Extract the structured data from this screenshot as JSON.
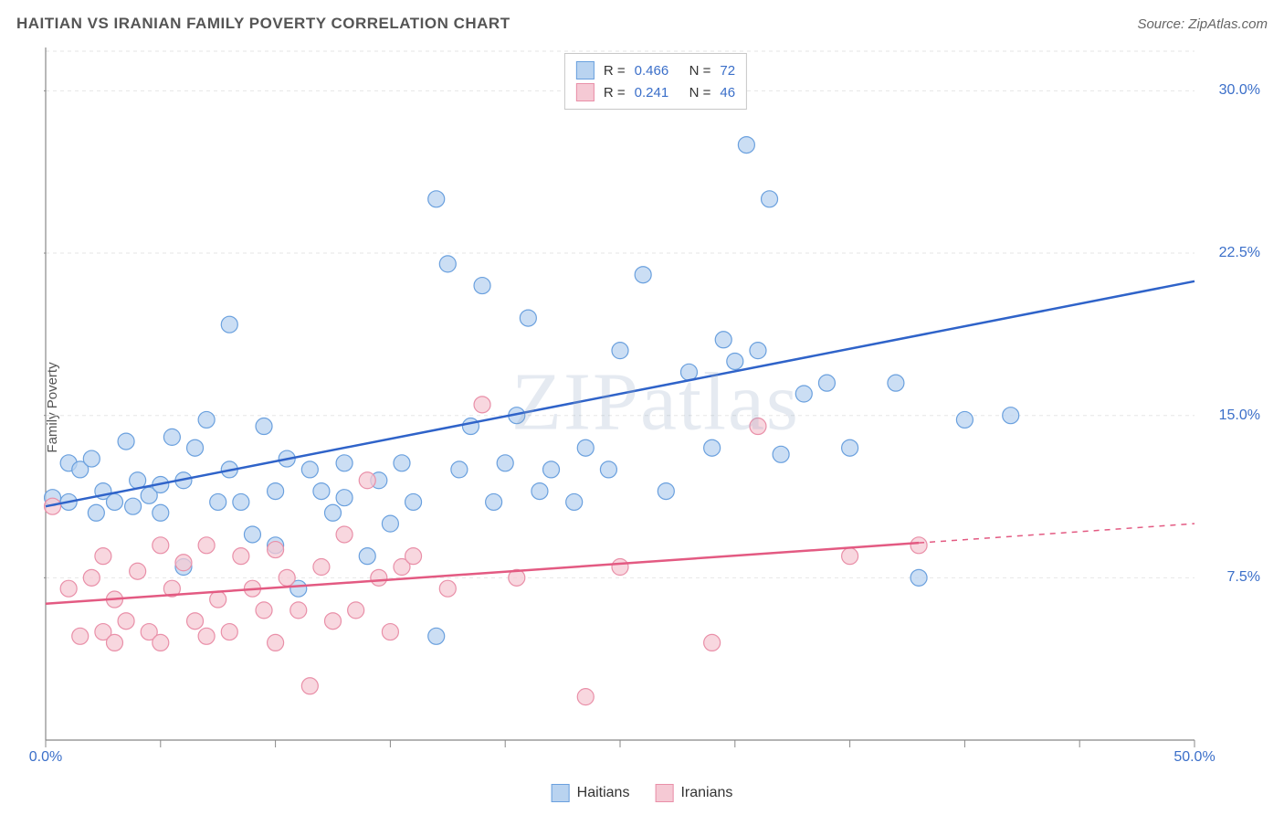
{
  "title": "HAITIAN VS IRANIAN FAMILY POVERTY CORRELATION CHART",
  "source_label": "Source: ZipAtlas.com",
  "ylabel": "Family Poverty",
  "watermark": "ZIPatlas",
  "chart": {
    "type": "scatter-with-regression",
    "background_color": "#ffffff",
    "grid_color": "#e6e6e6",
    "axis_color": "#888888",
    "tick_label_color": "#3b6fc9",
    "xlim": [
      0,
      50
    ],
    "ylim": [
      0,
      32
    ],
    "x_tick_vals": [
      0,
      5,
      10,
      15,
      20,
      25,
      30,
      35,
      40,
      45,
      50
    ],
    "x_tick_labels": {
      "0": "0.0%",
      "50": "50.0%"
    },
    "y_tick_vals": [
      7.5,
      15.0,
      22.5,
      30.0
    ],
    "y_tick_labels": [
      "7.5%",
      "15.0%",
      "22.5%",
      "30.0%"
    ],
    "marker_radius": 9,
    "marker_stroke_width": 1.2,
    "reg_line_width": 2.5,
    "series": [
      {
        "name": "Haitians",
        "fill": "#b9d3f0",
        "stroke": "#6aa0de",
        "line_color": "#2f63c9",
        "r": "0.466",
        "n": "72",
        "reg_start": [
          0,
          10.8
        ],
        "reg_end": [
          50,
          21.2
        ],
        "reg_dash_start_x": null,
        "points": [
          [
            0.3,
            11.2
          ],
          [
            1.0,
            12.8
          ],
          [
            1.0,
            11.0
          ],
          [
            1.5,
            12.5
          ],
          [
            2.0,
            13.0
          ],
          [
            2.2,
            10.5
          ],
          [
            2.5,
            11.5
          ],
          [
            3.0,
            11.0
          ],
          [
            3.5,
            13.8
          ],
          [
            3.8,
            10.8
          ],
          [
            4.0,
            12.0
          ],
          [
            4.5,
            11.3
          ],
          [
            5.0,
            11.8
          ],
          [
            5.0,
            10.5
          ],
          [
            5.5,
            14.0
          ],
          [
            6.0,
            12.0
          ],
          [
            6.0,
            8.0
          ],
          [
            6.5,
            13.5
          ],
          [
            7.0,
            14.8
          ],
          [
            7.5,
            11.0
          ],
          [
            8.0,
            12.5
          ],
          [
            8.0,
            19.2
          ],
          [
            8.5,
            11.0
          ],
          [
            9.0,
            9.5
          ],
          [
            9.5,
            14.5
          ],
          [
            10.0,
            11.5
          ],
          [
            10.0,
            9.0
          ],
          [
            10.5,
            13.0
          ],
          [
            11.0,
            7.0
          ],
          [
            11.5,
            12.5
          ],
          [
            12.0,
            11.5
          ],
          [
            12.5,
            10.5
          ],
          [
            13.0,
            11.2
          ],
          [
            13.0,
            12.8
          ],
          [
            14.0,
            8.5
          ],
          [
            14.5,
            12.0
          ],
          [
            15.0,
            10.0
          ],
          [
            15.5,
            12.8
          ],
          [
            16.0,
            11.0
          ],
          [
            17.0,
            4.8
          ],
          [
            17.0,
            25.0
          ],
          [
            17.5,
            22.0
          ],
          [
            18.0,
            12.5
          ],
          [
            18.5,
            14.5
          ],
          [
            19.0,
            21.0
          ],
          [
            19.5,
            11.0
          ],
          [
            20.0,
            12.8
          ],
          [
            20.5,
            15.0
          ],
          [
            21.0,
            19.5
          ],
          [
            21.5,
            11.5
          ],
          [
            22.0,
            12.5
          ],
          [
            23.0,
            11.0
          ],
          [
            23.5,
            13.5
          ],
          [
            24.5,
            12.5
          ],
          [
            25.0,
            18.0
          ],
          [
            26.0,
            21.5
          ],
          [
            27.0,
            11.5
          ],
          [
            28.0,
            17.0
          ],
          [
            29.0,
            13.5
          ],
          [
            29.5,
            18.5
          ],
          [
            30.0,
            17.5
          ],
          [
            30.5,
            27.5
          ],
          [
            31.0,
            18.0
          ],
          [
            31.5,
            25.0
          ],
          [
            32.0,
            13.2
          ],
          [
            33.0,
            16.0
          ],
          [
            34.0,
            16.5
          ],
          [
            35.0,
            13.5
          ],
          [
            37.0,
            16.5
          ],
          [
            38.0,
            7.5
          ],
          [
            40.0,
            14.8
          ],
          [
            42.0,
            15.0
          ]
        ]
      },
      {
        "name": "Iranians",
        "fill": "#f5c9d4",
        "stroke": "#e98fa8",
        "line_color": "#e35a82",
        "r": "0.241",
        "n": "46",
        "reg_start": [
          0,
          6.3
        ],
        "reg_end": [
          50,
          10.0
        ],
        "reg_dash_start_x": 38,
        "points": [
          [
            0.3,
            10.8
          ],
          [
            1.0,
            7.0
          ],
          [
            1.5,
            4.8
          ],
          [
            2.0,
            7.5
          ],
          [
            2.5,
            5.0
          ],
          [
            2.5,
            8.5
          ],
          [
            3.0,
            6.5
          ],
          [
            3.0,
            4.5
          ],
          [
            3.5,
            5.5
          ],
          [
            4.0,
            7.8
          ],
          [
            4.5,
            5.0
          ],
          [
            5.0,
            4.5
          ],
          [
            5.0,
            9.0
          ],
          [
            5.5,
            7.0
          ],
          [
            6.0,
            8.2
          ],
          [
            6.5,
            5.5
          ],
          [
            7.0,
            9.0
          ],
          [
            7.0,
            4.8
          ],
          [
            7.5,
            6.5
          ],
          [
            8.0,
            5.0
          ],
          [
            8.5,
            8.5
          ],
          [
            9.0,
            7.0
          ],
          [
            9.5,
            6.0
          ],
          [
            10.0,
            8.8
          ],
          [
            10.0,
            4.5
          ],
          [
            10.5,
            7.5
          ],
          [
            11.0,
            6.0
          ],
          [
            11.5,
            2.5
          ],
          [
            12.0,
            8.0
          ],
          [
            12.5,
            5.5
          ],
          [
            13.0,
            9.5
          ],
          [
            13.5,
            6.0
          ],
          [
            14.0,
            12.0
          ],
          [
            14.5,
            7.5
          ],
          [
            15.0,
            5.0
          ],
          [
            15.5,
            8.0
          ],
          [
            16.0,
            8.5
          ],
          [
            17.5,
            7.0
          ],
          [
            19.0,
            15.5
          ],
          [
            20.5,
            7.5
          ],
          [
            23.5,
            2.0
          ],
          [
            25.0,
            8.0
          ],
          [
            29.0,
            4.5
          ],
          [
            31.0,
            14.5
          ],
          [
            35.0,
            8.5
          ],
          [
            38.0,
            9.0
          ]
        ]
      }
    ]
  },
  "legend_box": {
    "r_label": "R =",
    "n_label": "N ="
  },
  "bottom_legend": [
    {
      "label": "Haitians",
      "fill": "#b9d3f0",
      "stroke": "#6aa0de"
    },
    {
      "label": "Iranians",
      "fill": "#f5c9d4",
      "stroke": "#e98fa8"
    }
  ]
}
